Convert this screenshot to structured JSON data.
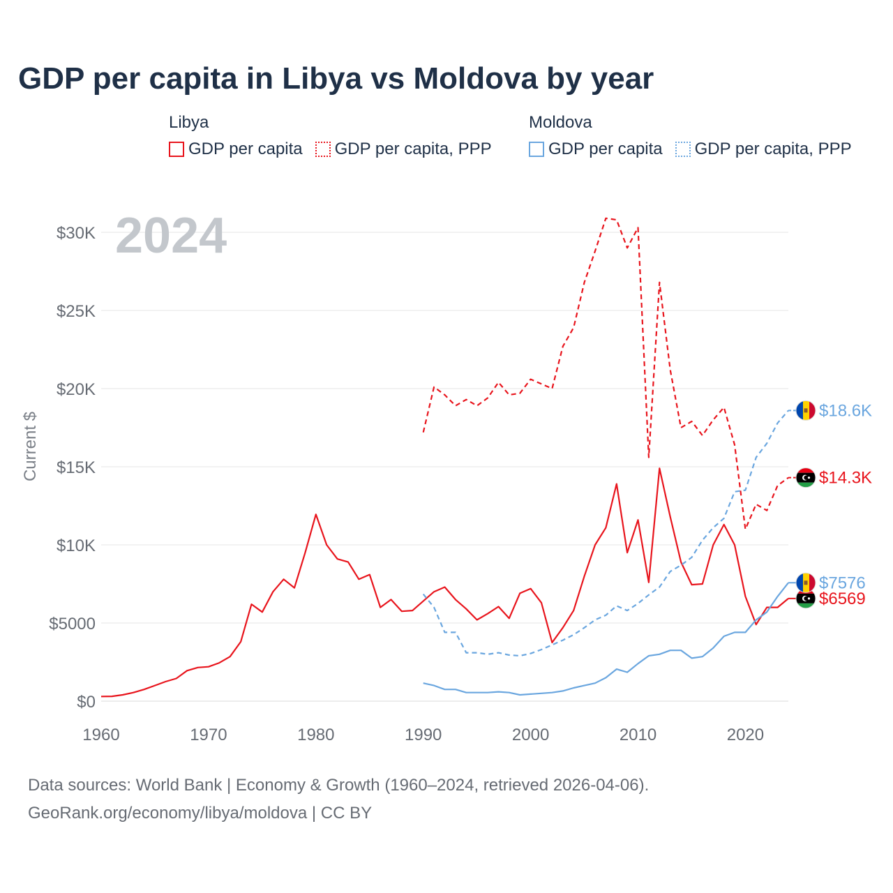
{
  "title": "GDP per capita in Libya vs Moldova by year",
  "legend": {
    "groups": [
      {
        "name": "Libya",
        "items": [
          {
            "label": "GDP per capita",
            "color": "#e8141c",
            "style": "solid"
          },
          {
            "label": "GDP per capita, PPP",
            "color": "#e8141c",
            "style": "dotted"
          }
        ]
      },
      {
        "name": "Moldova",
        "items": [
          {
            "label": "GDP per capita",
            "color": "#6aa6df",
            "style": "solid"
          },
          {
            "label": "GDP per capita, PPP",
            "color": "#6aa6df",
            "style": "dotted"
          }
        ]
      }
    ]
  },
  "year_label": "2024",
  "footer": {
    "line1": "Data sources: World Bank | Economy & Growth (1960–2024, retrieved 2026-04-06).",
    "line2": "GeoRank.org/economy/libya/moldova | CC BY"
  },
  "chart_data": {
    "type": "line",
    "title": "GDP per capita in Libya vs Moldova by year",
    "xlabel": "",
    "ylabel": "Current $",
    "xlim": [
      1960,
      2024
    ],
    "ylim": [
      0,
      30000
    ],
    "xticks": [
      1960,
      1970,
      1980,
      1990,
      2000,
      2010,
      2020
    ],
    "xtick_labels": [
      "1960",
      "1970",
      "1980",
      "1990",
      "2000",
      "2010",
      "2020"
    ],
    "yticks": [
      0,
      5000,
      10000,
      15000,
      20000,
      25000,
      30000
    ],
    "ytick_labels": [
      "$0",
      "$5000",
      "$10K",
      "$15K",
      "$20K",
      "$25K",
      "$30K"
    ],
    "grid": true,
    "series": [
      {
        "name": "Libya GDP per capita",
        "color": "#e8141c",
        "dash": false,
        "end_label": "$6569",
        "flag": "libya-flag-icon",
        "x": [
          1960,
          1961,
          1962,
          1963,
          1964,
          1965,
          1966,
          1967,
          1968,
          1969,
          1970,
          1971,
          1972,
          1973,
          1974,
          1975,
          1976,
          1977,
          1978,
          1979,
          1980,
          1981,
          1982,
          1983,
          1984,
          1985,
          1986,
          1987,
          1988,
          1989,
          1990,
          1991,
          1992,
          1993,
          1994,
          1995,
          1996,
          1997,
          1998,
          1999,
          2000,
          2001,
          2002,
          2003,
          2004,
          2005,
          2006,
          2007,
          2008,
          2009,
          2010,
          2011,
          2012,
          2013,
          2014,
          2015,
          2016,
          2017,
          2018,
          2019,
          2020,
          2021,
          2022,
          2023,
          2024
        ],
        "values": [
          300,
          310,
          400,
          550,
          750,
          1000,
          1250,
          1450,
          1950,
          2150,
          2200,
          2450,
          2850,
          3800,
          6200,
          5700,
          7000,
          7800,
          7250,
          9500,
          11950,
          10000,
          9100,
          8900,
          7800,
          8100,
          6000,
          6500,
          5750,
          5800,
          6400,
          7000,
          7300,
          6500,
          5900,
          5200,
          5600,
          6050,
          5300,
          6900,
          7200,
          6300,
          3750,
          4700,
          5800,
          8000,
          10000,
          11100,
          13900,
          9500,
          11600,
          7600,
          14900,
          11800,
          8900,
          7450,
          7500,
          10000,
          11300,
          10000,
          6700,
          4900,
          6000,
          6000,
          6569
        ]
      },
      {
        "name": "Libya GDP per capita, PPP",
        "color": "#e8141c",
        "dash": true,
        "end_label": "$14.3K",
        "flag": "libya-flag-icon",
        "x": [
          1990,
          1991,
          1992,
          1993,
          1994,
          1995,
          1996,
          1997,
          1998,
          1999,
          2000,
          2001,
          2002,
          2003,
          2004,
          2005,
          2006,
          2007,
          2008,
          2009,
          2010,
          2011,
          2012,
          2013,
          2014,
          2015,
          2016,
          2017,
          2018,
          2019,
          2020,
          2021,
          2022,
          2023,
          2024
        ],
        "values": [
          17200,
          20100,
          19600,
          18900,
          19300,
          18900,
          19400,
          20400,
          19600,
          19700,
          20600,
          20300,
          20000,
          22700,
          23900,
          26800,
          28800,
          30900,
          30800,
          29000,
          30300,
          15600,
          26800,
          21200,
          17500,
          17900,
          17000,
          18000,
          18800,
          16400,
          11000,
          12600,
          12200,
          13800,
          14300
        ]
      },
      {
        "name": "Moldova GDP per capita",
        "color": "#6aa6df",
        "dash": false,
        "end_label": "$7576",
        "flag": "moldova-flag-icon",
        "x": [
          1990,
          1991,
          1992,
          1993,
          1994,
          1995,
          1996,
          1997,
          1998,
          1999,
          2000,
          2001,
          2002,
          2003,
          2004,
          2005,
          2006,
          2007,
          2008,
          2009,
          2010,
          2011,
          2012,
          2013,
          2014,
          2015,
          2016,
          2017,
          2018,
          2019,
          2020,
          2021,
          2022,
          2023,
          2024
        ],
        "values": [
          1150,
          1000,
          750,
          750,
          550,
          550,
          550,
          600,
          550,
          400,
          450,
          500,
          550,
          650,
          850,
          1000,
          1150,
          1500,
          2050,
          1850,
          2400,
          2900,
          3000,
          3250,
          3250,
          2750,
          2850,
          3400,
          4150,
          4400,
          4400,
          5200,
          5700,
          6700,
          7576
        ]
      },
      {
        "name": "Moldova GDP per capita, PPP",
        "color": "#6aa6df",
        "dash": true,
        "end_label": "$18.6K",
        "flag": "moldova-flag-icon",
        "x": [
          1990,
          1991,
          1992,
          1993,
          1994,
          1995,
          1996,
          1997,
          1998,
          1999,
          2000,
          2001,
          2002,
          2003,
          2004,
          2005,
          2006,
          2007,
          2008,
          2009,
          2010,
          2011,
          2012,
          2013,
          2014,
          2015,
          2016,
          2017,
          2018,
          2019,
          2020,
          2021,
          2022,
          2023,
          2024
        ],
        "values": [
          6850,
          6000,
          4400,
          4400,
          3100,
          3100,
          3000,
          3100,
          2950,
          2900,
          3050,
          3300,
          3600,
          3900,
          4250,
          4700,
          5200,
          5500,
          6100,
          5800,
          6250,
          6800,
          7300,
          8300,
          8700,
          9200,
          10300,
          11100,
          11700,
          13400,
          13500,
          15600,
          16500,
          17800,
          18600
        ]
      }
    ]
  }
}
